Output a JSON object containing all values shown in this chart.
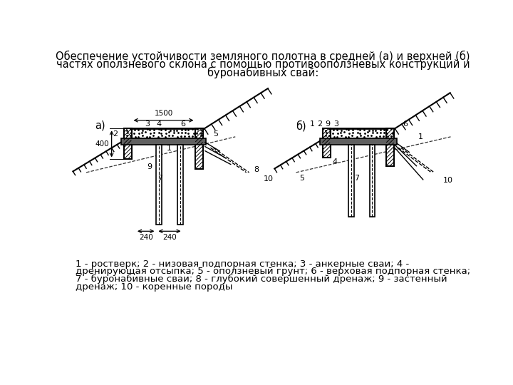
{
  "title_line1": "Обеспечение устойчивости земляного полотна в средней (а) и верхней (б)",
  "title_line2": "частях оползневого склона с помощью противооползневых конструкций и",
  "title_line3": "буронабивных свай:",
  "legend_line1": "1 - ростверк; 2 - низовая подпорная стенка; 3 - анкерные сваи; 4 -",
  "legend_line2": "дренирующая отсыпка; 5 - оползневый грунт; 6 - верховая подпорная стенка;",
  "legend_line3": "7 - буронабивные сваи; 8 - глубокий совершенный дренаж; 9 - застенный",
  "legend_line4": "дренаж; 10 - коренные породы",
  "bg_color": "#ffffff",
  "lc": "#000000",
  "fs_title": 10.5,
  "fs_leg": 9.5,
  "fs_lab": 8
}
